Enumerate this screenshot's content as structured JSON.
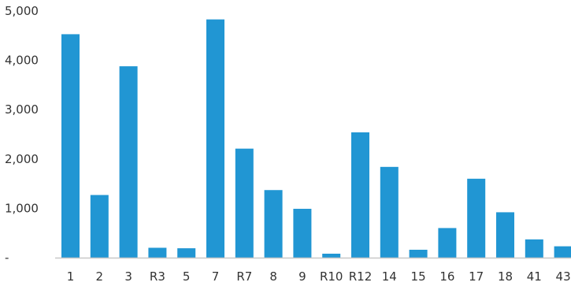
{
  "chart_data": {
    "type": "bar",
    "categories": [
      "1",
      "2",
      "3",
      "R3",
      "5",
      "7",
      "R7",
      "8",
      "9",
      "R10",
      "R12",
      "14",
      "15",
      "16",
      "17",
      "18",
      "41",
      "43"
    ],
    "values": [
      4530,
      1270,
      3880,
      200,
      190,
      4830,
      2210,
      1370,
      990,
      80,
      2540,
      1840,
      160,
      600,
      1600,
      920,
      370,
      230
    ],
    "yticks": [
      "-",
      "1,000",
      "2,000",
      "3,000",
      "4,000",
      "5,000"
    ],
    "ylim": [
      0,
      5000
    ],
    "grid": false,
    "colors": {
      "bar": "#2196d3",
      "axis": "#c8c8c8",
      "text": "#333333"
    }
  }
}
